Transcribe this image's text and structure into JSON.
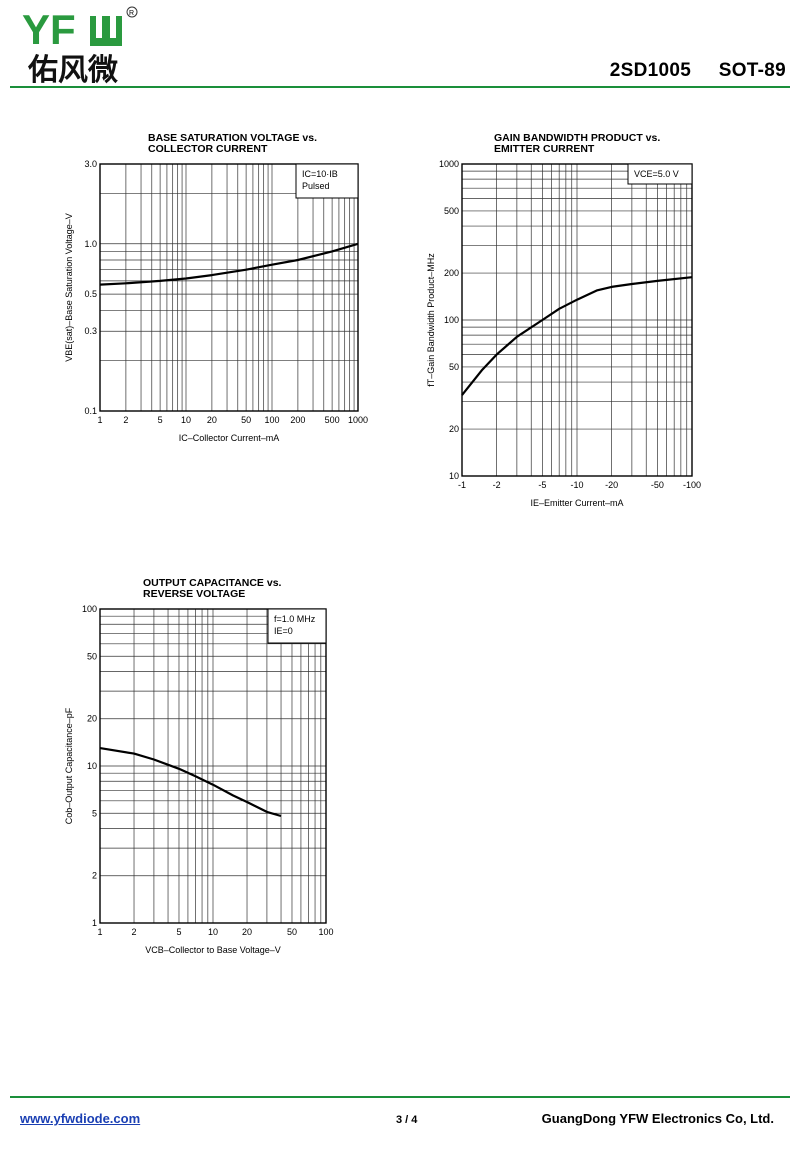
{
  "header": {
    "brand": "YFW",
    "brand_cn": "佑风微",
    "part": "2SD1005",
    "package": "SOT-89"
  },
  "footer": {
    "website": "www.yfwdiode.com",
    "page": "3 / 4",
    "company": "GuangDong YFW Electronics Co, Ltd."
  },
  "colors": {
    "accent": "#1a8f3a",
    "brand": "#2a9a3f",
    "link": "#1a3fb3"
  },
  "chart_data": [
    {
      "type": "line",
      "title_line1": "BASE SATURATION VOLTAGE vs.",
      "title_line2": "COLLECTOR CURRENT",
      "xlabel": "IC–Collector Current–mA",
      "ylabel": "VBE(sat)–Base Saturation Voltage–V",
      "xscale": "log",
      "yscale": "log",
      "xlim": [
        1,
        1000
      ],
      "ylim": [
        0.1,
        3.0
      ],
      "xticks": [
        "1",
        "2",
        "5",
        "10",
        "20",
        "50",
        "100",
        "200",
        "500",
        "1000"
      ],
      "yticks": [
        "3.0",
        "1.0",
        "0.5",
        "0.3",
        "0.1"
      ],
      "legend": [
        "IC=10·IB",
        "Pulsed"
      ],
      "grid": true,
      "series": [
        {
          "x": [
            1,
            2,
            5,
            10,
            20,
            50,
            100,
            200,
            500,
            1000
          ],
          "y": [
            0.57,
            0.58,
            0.6,
            0.62,
            0.65,
            0.7,
            0.75,
            0.8,
            0.9,
            1.0
          ]
        }
      ]
    },
    {
      "type": "line",
      "title_line1": "GAIN BANDWIDTH PRODUCT vs.",
      "title_line2": "EMITTER CURRENT",
      "xlabel": "IE–Emitter Current–mA",
      "ylabel": "fT–Gain Bandwidth Product–MHz",
      "xscale": "log",
      "yscale": "log",
      "xlim": [
        -1,
        -100
      ],
      "ylim": [
        10,
        1000
      ],
      "xticks": [
        "-1",
        "-2",
        "-5",
        "-10",
        "-20",
        "-50",
        "-100"
      ],
      "yticks": [
        "1000",
        "500",
        "200",
        "100",
        "50",
        "20",
        "10"
      ],
      "legend": [
        "VCE=5.0 V"
      ],
      "grid": true,
      "series": [
        {
          "x": [
            -1,
            -1.5,
            -2,
            -3,
            -5,
            -7,
            -10,
            -15,
            -20,
            -30,
            -50,
            -100
          ],
          "y": [
            33,
            48,
            60,
            78,
            100,
            118,
            135,
            155,
            163,
            170,
            178,
            188
          ]
        }
      ]
    },
    {
      "type": "line",
      "title_line1": "OUTPUT CAPACITANCE vs.",
      "title_line2": "REVERSE VOLTAGE",
      "xlabel": "VCB–Collector to Base Voltage–V",
      "ylabel": "Cob–Output Capacitance–pF",
      "xscale": "log",
      "yscale": "log",
      "xlim": [
        1,
        100
      ],
      "ylim": [
        1,
        100
      ],
      "xticks": [
        "1",
        "2",
        "5",
        "10",
        "20",
        "50",
        "100"
      ],
      "yticks": [
        "100",
        "50",
        "20",
        "10",
        "5",
        "2",
        "1"
      ],
      "legend": [
        "f=1.0 MHz",
        "IE=0"
      ],
      "grid": true,
      "series": [
        {
          "x": [
            1,
            2,
            3,
            5,
            7,
            10,
            15,
            20,
            30,
            40
          ],
          "y": [
            13,
            12,
            11,
            9.6,
            8.6,
            7.6,
            6.5,
            5.9,
            5.1,
            4.8
          ]
        }
      ]
    }
  ]
}
